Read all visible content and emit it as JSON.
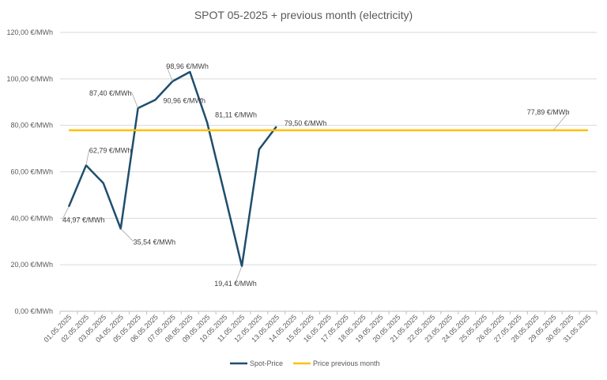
{
  "chart_data": {
    "type": "line",
    "title": "SPOT 05-2025 + previous month (electricity)",
    "xlabel": "",
    "ylabel": "",
    "ylim": [
      0,
      120
    ],
    "yticks": [
      0,
      20,
      40,
      60,
      80,
      100,
      120
    ],
    "ytick_labels": [
      "0,00 €/MWh",
      "20,00 €/MWh",
      "40,00 €/MWh",
      "60,00 €/MWh",
      "80,00 €/MWh",
      "100,00 €/MWh",
      "120,00 €/MWh"
    ],
    "grid": true,
    "legend_position": "bottom",
    "categories": [
      "01.05.2025",
      "02.05.2025",
      "03.05.2025",
      "04.05.2025",
      "05.05.2025",
      "06.05.2025",
      "07.05.2025",
      "08.05.2025",
      "09.05.2025",
      "10.05.2025",
      "11.05.2025",
      "12.05.2025",
      "13.05.2025",
      "14.05.2025",
      "15.05.2025",
      "16.05.2025",
      "17.05.2025",
      "18.05.2025",
      "19.05.2025",
      "20.05.2025",
      "21.05.2025",
      "22.05.2025",
      "23.05.2025",
      "24.05.2025",
      "25.05.2025",
      "26.05.2025",
      "27.05.2025",
      "28.05.2025",
      "29.05.2025",
      "30.05.2025",
      "31.05.2025"
    ],
    "series": [
      {
        "name": "Spot-Price",
        "color": "#1f4e6e",
        "values": [
          44.97,
          62.79,
          55.1,
          35.54,
          87.4,
          90.96,
          98.96,
          103.0,
          81.11,
          50.5,
          19.41,
          69.7,
          79.5,
          null,
          null,
          null,
          null,
          null,
          null,
          null,
          null,
          null,
          null,
          null,
          null,
          null,
          null,
          null,
          null,
          null,
          null
        ],
        "annotations": [
          {
            "index": 0,
            "text": "44,97 €/MWh"
          },
          {
            "index": 1,
            "text": "62,79 €/MWh"
          },
          {
            "index": 3,
            "text": "35,54 €/MWh"
          },
          {
            "index": 4,
            "text": "87,40 €/MWh"
          },
          {
            "index": 6,
            "text": "98,96 €/MWh"
          },
          {
            "index": 5,
            "text": "90,96 €/MWh"
          },
          {
            "index": 8,
            "text": "81,11 €/MWh"
          },
          {
            "index": 10,
            "text": "19,41 €/MWh"
          },
          {
            "index": 12,
            "text": "79,50 €/MWh"
          }
        ]
      },
      {
        "name": "Price previous month",
        "color": "#ffc000",
        "values": [
          77.89,
          77.89,
          77.89,
          77.89,
          77.89,
          77.89,
          77.89,
          77.89,
          77.89,
          77.89,
          77.89,
          77.89,
          77.89,
          77.89,
          77.89,
          77.89,
          77.89,
          77.89,
          77.89,
          77.89,
          77.89,
          77.89,
          77.89,
          77.89,
          77.89,
          77.89,
          77.89,
          77.89,
          77.89,
          77.89,
          77.89
        ],
        "annotations": [
          {
            "index": 28,
            "text": "77,89 €/MWh"
          }
        ]
      }
    ]
  }
}
